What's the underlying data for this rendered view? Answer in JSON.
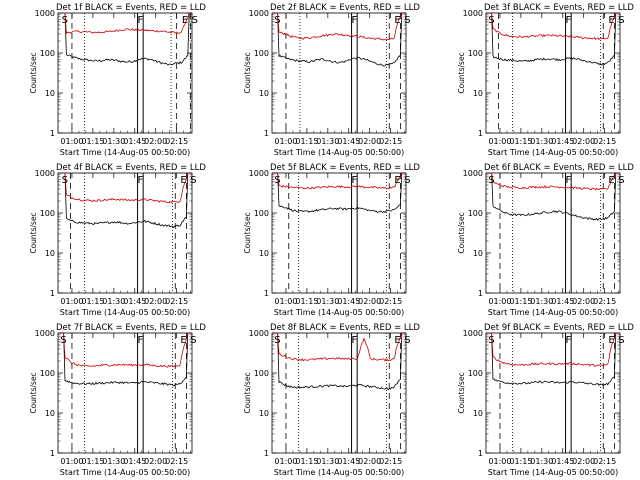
{
  "chart_data": [
    {
      "type": "line",
      "title": "Det 1f BLACK = Events, RED = LLD",
      "xlabel": "Start Time (14-Aug-05 00:50:00)",
      "ylabel": "Counts/sec",
      "x_ticks": [
        "01:00",
        "01:15",
        "01:30",
        "01:45",
        "02:00",
        "02:15"
      ],
      "y_ticks": [
        "1",
        "10",
        "100",
        "1000"
      ],
      "yscale": "log",
      "ylim": [
        1,
        1000
      ],
      "x_range_minutes": [
        0,
        96
      ],
      "markers": {
        "S_start": 4,
        "F_left": 57,
        "F_right": 61,
        "E": 93,
        "S_end": 95,
        "dashed": [
          10,
          85,
          95
        ],
        "dotted": [
          19,
          81
        ]
      },
      "series": [
        {
          "name": "Events",
          "color": "#000000",
          "values": [
            90,
            80,
            72,
            68,
            65,
            63,
            65,
            68,
            66,
            62,
            60,
            62,
            70,
            72,
            68,
            60,
            55,
            50,
            55,
            58,
            85
          ]
        },
        {
          "name": "LLD",
          "color": "#d00000",
          "values": [
            320,
            340,
            345,
            335,
            330,
            328,
            335,
            340,
            360,
            380,
            390,
            385,
            375,
            370,
            360,
            355,
            350,
            330,
            320,
            330,
            750
          ]
        }
      ]
    },
    {
      "type": "line",
      "title": "Det 2f BLACK = Events, RED = LLD",
      "xlabel": "Start Time (14-Aug-05 00:50:00)",
      "ylabel": "Counts/sec",
      "x_ticks": [
        "01:00",
        "01:15",
        "01:30",
        "01:45",
        "02:00",
        "02:15"
      ],
      "y_ticks": [
        "1",
        "10",
        "100",
        "1000"
      ],
      "yscale": "log",
      "ylim": [
        1,
        1000
      ],
      "x_range_minutes": [
        0,
        96
      ],
      "markers": {
        "S_start": 3,
        "F_left": 57,
        "F_right": 61,
        "E": 92,
        "S_end": 94,
        "dashed": [
          10,
          84,
          92
        ],
        "dotted": [
          20,
          82
        ]
      },
      "series": [
        {
          "name": "Events",
          "color": "#000000",
          "values": [
            85,
            75,
            68,
            64,
            62,
            60,
            65,
            70,
            66,
            60,
            58,
            62,
            72,
            76,
            70,
            62,
            55,
            50,
            50,
            55,
            90
          ]
        },
        {
          "name": "LLD",
          "color": "#d00000",
          "values": [
            330,
            300,
            260,
            240,
            235,
            240,
            255,
            270,
            280,
            300,
            290,
            285,
            270,
            260,
            245,
            235,
            230,
            220,
            215,
            230,
            800
          ]
        }
      ]
    },
    {
      "type": "line",
      "title": "Det 3f BLACK = Events, RED = LLD",
      "xlabel": "Start Time (14-Aug-05 00:50:00)",
      "ylabel": "Counts/sec",
      "x_ticks": [
        "01:00",
        "01:15",
        "01:30",
        "01:45",
        "02:00",
        "02:15"
      ],
      "y_ticks": [
        "1",
        "10",
        "100",
        "1000"
      ],
      "yscale": "log",
      "ylim": [
        1,
        1000
      ],
      "x_range_minutes": [
        0,
        96
      ],
      "markers": {
        "S_start": 3,
        "F_left": 57,
        "F_right": 61,
        "E": 92,
        "S_end": 94,
        "dashed": [
          9,
          84,
          92
        ],
        "dotted": [
          19,
          82
        ]
      },
      "series": [
        {
          "name": "Events",
          "color": "#000000",
          "values": [
            80,
            72,
            68,
            66,
            64,
            62,
            64,
            68,
            70,
            72,
            70,
            68,
            72,
            74,
            70,
            64,
            60,
            55,
            52,
            58,
            85
          ]
        },
        {
          "name": "LLD",
          "color": "#d00000",
          "values": [
            400,
            320,
            280,
            260,
            255,
            255,
            260,
            265,
            270,
            275,
            272,
            268,
            262,
            255,
            248,
            240,
            235,
            230,
            225,
            240,
            800
          ]
        }
      ]
    },
    {
      "type": "line",
      "title": "Det 4f BLACK = Events, RED = LLD",
      "xlabel": "Start Time (14-Aug-05 00:50:00)",
      "ylabel": "Counts/sec",
      "x_ticks": [
        "01:00",
        "01:15",
        "01:30",
        "01:45",
        "02:00",
        "02:15"
      ],
      "y_ticks": [
        "1",
        "10",
        "100",
        "1000"
      ],
      "yscale": "log",
      "ylim": [
        1,
        1000
      ],
      "x_range_minutes": [
        0,
        96
      ],
      "markers": {
        "S_start": 4,
        "F_left": 57,
        "F_right": 61,
        "E": 92,
        "S_end": 94,
        "dashed": [
          9,
          84,
          92
        ],
        "dotted": [
          19,
          82
        ]
      },
      "series": [
        {
          "name": "Events",
          "color": "#000000",
          "values": [
            70,
            62,
            58,
            56,
            55,
            54,
            56,
            58,
            60,
            58,
            55,
            56,
            60,
            62,
            58,
            54,
            50,
            48,
            46,
            50,
            80
          ]
        },
        {
          "name": "LLD",
          "color": "#d00000",
          "values": [
            280,
            240,
            220,
            210,
            205,
            205,
            210,
            215,
            220,
            218,
            212,
            210,
            214,
            218,
            210,
            200,
            195,
            190,
            188,
            200,
            700
          ]
        }
      ]
    },
    {
      "type": "line",
      "title": "Det 5f BLACK = Events, RED = LLD",
      "xlabel": "Start Time (14-Aug-05 00:50:00)",
      "ylabel": "Counts/sec",
      "x_ticks": [
        "01:00",
        "01:15",
        "01:30",
        "01:45",
        "02:00",
        "02:15"
      ],
      "y_ticks": [
        "1",
        "10",
        "100",
        "1000"
      ],
      "yscale": "log",
      "ylim": [
        1,
        1000
      ],
      "x_range_minutes": [
        0,
        96
      ],
      "markers": {
        "S_start": 3,
        "F_left": 57,
        "F_right": 61,
        "E": 92,
        "S_end": 94,
        "dashed": [
          12,
          84,
          92
        ],
        "dotted": [
          19,
          82
        ]
      },
      "series": [
        {
          "name": "Events",
          "color": "#000000",
          "values": [
            150,
            140,
            120,
            110,
            108,
            110,
            115,
            120,
            125,
            130,
            128,
            125,
            130,
            135,
            125,
            115,
            110,
            108,
            112,
            120,
            160
          ]
        },
        {
          "name": "LLD",
          "color": "#d00000",
          "values": [
            480,
            460,
            440,
            430,
            420,
            420,
            430,
            440,
            450,
            460,
            455,
            450,
            455,
            460,
            450,
            440,
            430,
            420,
            420,
            440,
            800
          ]
        }
      ]
    },
    {
      "type": "line",
      "title": "Det 6f BLACK = Events, RED = LLD",
      "xlabel": "Start Time (14-Aug-05 00:50:00)",
      "ylabel": "Counts/sec",
      "x_ticks": [
        "01:00",
        "01:15",
        "01:30",
        "01:45",
        "02:00",
        "02:15"
      ],
      "y_ticks": [
        "1",
        "10",
        "100",
        "1000"
      ],
      "yscale": "log",
      "ylim": [
        1,
        1000
      ],
      "x_range_minutes": [
        0,
        96
      ],
      "markers": {
        "S_start": 3,
        "F_left": 57,
        "F_right": 61,
        "E": 92,
        "S_end": 94,
        "dashed": [
          10,
          84,
          92
        ],
        "dotted": [
          19,
          82
        ]
      },
      "series": [
        {
          "name": "Events",
          "color": "#000000",
          "values": [
            150,
            120,
            100,
            92,
            90,
            88,
            92,
            96,
            100,
            105,
            110,
            108,
            100,
            90,
            82,
            76,
            72,
            70,
            70,
            76,
            110
          ]
        },
        {
          "name": "LLD",
          "color": "#d00000",
          "values": [
            600,
            500,
            460,
            440,
            430,
            430,
            440,
            445,
            450,
            455,
            452,
            448,
            440,
            430,
            420,
            410,
            400,
            395,
            390,
            410,
            900
          ]
        }
      ]
    },
    {
      "type": "line",
      "title": "Det 7f BLACK = Events, RED = LLD",
      "xlabel": "Start Time (14-Aug-05 00:50:00)",
      "ylabel": "Counts/sec",
      "x_ticks": [
        "01:00",
        "01:15",
        "01:30",
        "01:45",
        "02:00",
        "02:15"
      ],
      "y_ticks": [
        "1",
        "10",
        "100",
        "1000"
      ],
      "yscale": "log",
      "ylim": [
        1,
        1000
      ],
      "x_range_minutes": [
        0,
        96
      ],
      "markers": {
        "S_start": 3,
        "F_left": 57,
        "F_right": 61,
        "E": 92,
        "S_end": 94,
        "dashed": [
          10,
          84,
          92
        ],
        "dotted": [
          19,
          82
        ]
      },
      "series": [
        {
          "name": "Events",
          "color": "#000000",
          "values": [
            65,
            58,
            55,
            54,
            54,
            55,
            56,
            57,
            58,
            58,
            57,
            56,
            58,
            60,
            58,
            56,
            54,
            52,
            50,
            54,
            80
          ]
        },
        {
          "name": "LLD",
          "color": "#d00000",
          "values": [
            250,
            180,
            160,
            150,
            148,
            150,
            155,
            158,
            160,
            162,
            160,
            158,
            160,
            162,
            158,
            152,
            150,
            148,
            146,
            155,
            700
          ]
        }
      ]
    },
    {
      "type": "line",
      "title": "Det 8f BLACK = Events, RED = LLD",
      "xlabel": "Start Time (14-Aug-05 00:50:00)",
      "ylabel": "Counts/sec",
      "x_ticks": [
        "01:00",
        "01:15",
        "01:30",
        "01:45",
        "02:00",
        "02:15"
      ],
      "y_ticks": [
        "1",
        "10",
        "100",
        "1000"
      ],
      "yscale": "log",
      "ylim": [
        1,
        1000
      ],
      "x_range_minutes": [
        0,
        96
      ],
      "markers": {
        "S_start": 3,
        "F_left": 57,
        "F_right": 61,
        "E": 92,
        "S_end": 94,
        "dashed": [
          10,
          84,
          92
        ],
        "dotted": [
          19,
          82
        ]
      },
      "series": [
        {
          "name": "Events",
          "color": "#000000",
          "values": [
            60,
            50,
            45,
            44,
            44,
            45,
            46,
            47,
            48,
            48,
            47,
            46,
            48,
            50,
            48,
            46,
            44,
            42,
            40,
            44,
            70
          ]
        },
        {
          "name": "LLD",
          "color": "#d00000",
          "values": [
            300,
            260,
            230,
            220,
            215,
            215,
            220,
            225,
            230,
            232,
            230,
            225,
            228,
            230,
            700,
            225,
            220,
            215,
            212,
            225,
            800
          ]
        }
      ]
    },
    {
      "type": "line",
      "title": "Det 9f BLACK = Events, RED = LLD",
      "xlabel": "Start Time (14-Aug-05 00:50:00)",
      "ylabel": "Counts/sec",
      "x_ticks": [
        "01:00",
        "01:15",
        "01:30",
        "01:45",
        "02:00",
        "02:15"
      ],
      "y_ticks": [
        "1",
        "10",
        "100",
        "1000"
      ],
      "yscale": "log",
      "ylim": [
        1,
        1000
      ],
      "x_range_minutes": [
        0,
        96
      ],
      "markers": {
        "S_start": 3,
        "F_left": 57,
        "F_right": 61,
        "E": 92,
        "S_end": 94,
        "dashed": [
          10,
          84,
          92
        ],
        "dotted": [
          19,
          82
        ]
      },
      "series": [
        {
          "name": "Events",
          "color": "#000000",
          "values": [
            70,
            62,
            58,
            56,
            55,
            55,
            56,
            58,
            60,
            60,
            58,
            57,
            58,
            60,
            58,
            56,
            54,
            52,
            50,
            54,
            80
          ]
        },
        {
          "name": "LLD",
          "color": "#d00000",
          "values": [
            250,
            200,
            175,
            165,
            160,
            160,
            165,
            168,
            170,
            172,
            170,
            168,
            170,
            172,
            168,
            162,
            158,
            155,
            152,
            165,
            750
          ]
        }
      ]
    }
  ]
}
